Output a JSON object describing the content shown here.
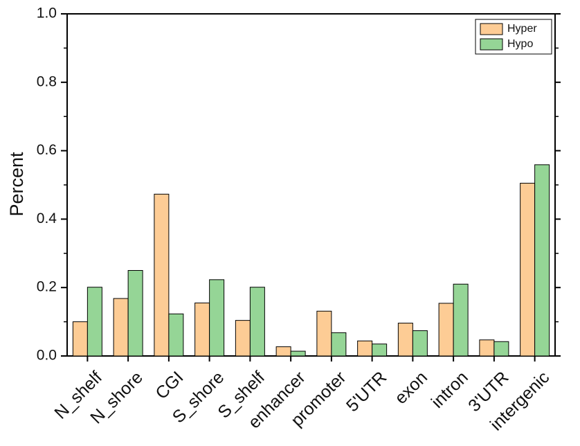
{
  "chart_data": {
    "type": "bar",
    "title": "",
    "xlabel": "",
    "ylabel": "Percent",
    "ylim": [
      0,
      1.0
    ],
    "yticks": [
      "0.0",
      "0.2",
      "0.4",
      "0.6",
      "0.8",
      "1.0"
    ],
    "categories": [
      "N_shelf",
      "N_shore",
      "CGI",
      "S_shore",
      "S_shelf",
      "enhancer",
      "promoter",
      "5'UTR",
      "exon",
      "intron",
      "3'UTR",
      "intergenic"
    ],
    "series": [
      {
        "name": "Hyper",
        "color": "#fdcc95",
        "values": [
          0.1,
          0.168,
          0.473,
          0.155,
          0.104,
          0.027,
          0.131,
          0.044,
          0.096,
          0.154,
          0.047,
          0.505
        ]
      },
      {
        "name": "Hypo",
        "color": "#95d596",
        "values": [
          0.201,
          0.25,
          0.123,
          0.223,
          0.201,
          0.014,
          0.068,
          0.035,
          0.074,
          0.21,
          0.042,
          0.559
        ]
      }
    ],
    "legend_position": "top-right",
    "grid": false
  }
}
